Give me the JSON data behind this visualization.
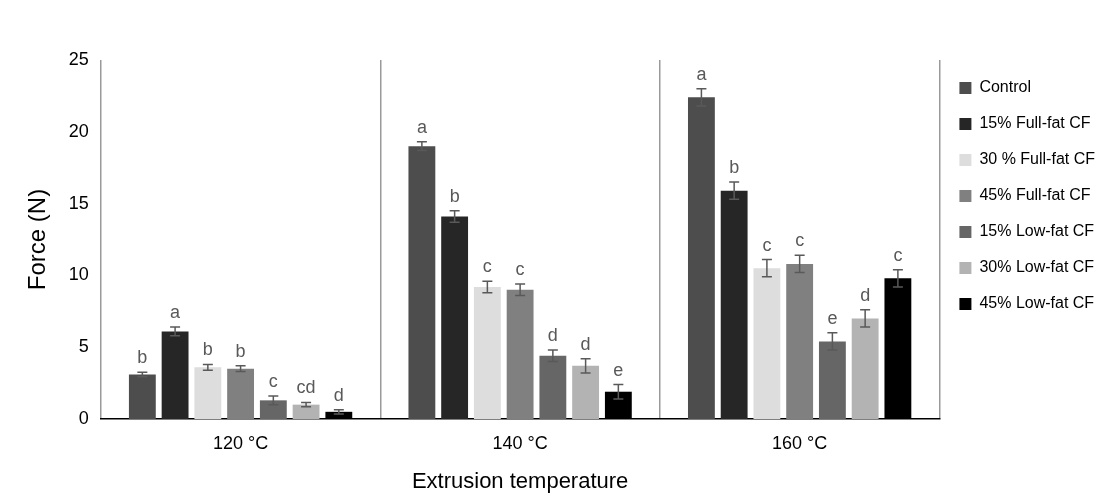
{
  "chart_data": {
    "type": "bar",
    "xlabel": "Extrusion temperature",
    "ylabel": "Force (N)",
    "categories": [
      "120 °C",
      "140 °C",
      "160 °C"
    ],
    "ylim": [
      0,
      25
    ],
    "yticks": [
      0,
      5,
      10,
      15,
      20,
      25
    ],
    "grid": "x",
    "legend": "right",
    "series": [
      {
        "name": "Control",
        "color": "#4d4d4d",
        "values": [
          3.1,
          19.0,
          22.4
        ],
        "errors": [
          0.15,
          0.3,
          0.6
        ],
        "value_labels": [
          "b",
          "a",
          "a"
        ]
      },
      {
        "name": "15% Full-fat CF",
        "color": "#262626",
        "values": [
          6.1,
          14.1,
          15.9
        ],
        "errors": [
          0.3,
          0.4,
          0.6
        ],
        "value_labels": [
          "a",
          "b",
          "b"
        ]
      },
      {
        "name": "30 % Full-fat CF",
        "color": "#dddddd",
        "values": [
          3.6,
          9.2,
          10.5
        ],
        "errors": [
          0.2,
          0.4,
          0.6
        ],
        "value_labels": [
          "b",
          "c",
          "c"
        ]
      },
      {
        "name": "45% Full-fat CF",
        "color": "#808080",
        "values": [
          3.5,
          9.0,
          10.8
        ],
        "errors": [
          0.2,
          0.4,
          0.6
        ],
        "value_labels": [
          "b",
          "c",
          "c"
        ]
      },
      {
        "name": "15% Low-fat CF",
        "color": "#666666",
        "values": [
          1.3,
          4.4,
          5.4
        ],
        "errors": [
          0.3,
          0.4,
          0.6
        ],
        "value_labels": [
          "c",
          "d",
          "e"
        ]
      },
      {
        "name": "30% Low-fat CF",
        "color": "#b3b3b3",
        "values": [
          1.0,
          3.7,
          7.0
        ],
        "errors": [
          0.15,
          0.5,
          0.6
        ],
        "value_labels": [
          "cd",
          "d",
          "d"
        ]
      },
      {
        "name": "45% Low-fat CF",
        "color": "#000000",
        "values": [
          0.5,
          1.9,
          9.8
        ],
        "errors": [
          0.15,
          0.5,
          0.6
        ],
        "value_labels": [
          "d",
          "e",
          "c"
        ]
      }
    ]
  }
}
